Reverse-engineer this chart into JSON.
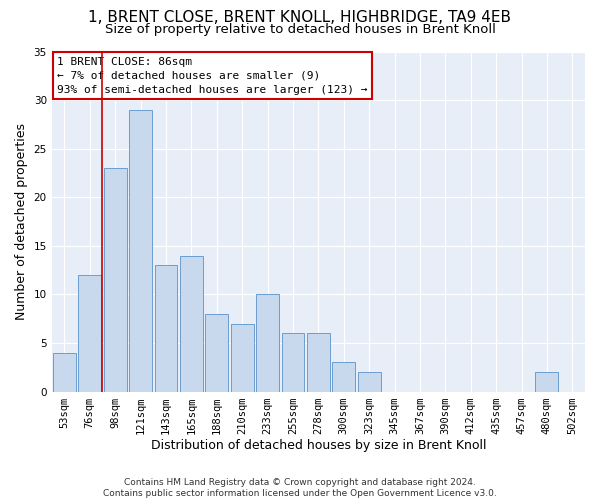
{
  "title": "1, BRENT CLOSE, BRENT KNOLL, HIGHBRIDGE, TA9 4EB",
  "subtitle": "Size of property relative to detached houses in Brent Knoll",
  "xlabel": "Distribution of detached houses by size in Brent Knoll",
  "ylabel": "Number of detached properties",
  "bar_color": "#c9d9ed",
  "bar_edge_color": "#6a9ecf",
  "bins": [
    "53sqm",
    "76sqm",
    "98sqm",
    "121sqm",
    "143sqm",
    "165sqm",
    "188sqm",
    "210sqm",
    "233sqm",
    "255sqm",
    "278sqm",
    "300sqm",
    "323sqm",
    "345sqm",
    "367sqm",
    "390sqm",
    "412sqm",
    "435sqm",
    "457sqm",
    "480sqm",
    "502sqm"
  ],
  "values": [
    4,
    12,
    23,
    29,
    13,
    14,
    8,
    7,
    10,
    6,
    6,
    3,
    2,
    0,
    0,
    0,
    0,
    0,
    0,
    2,
    0
  ],
  "vline_color": "#cc0000",
  "vline_x": 1.5,
  "annotation_text": "1 BRENT CLOSE: 86sqm\n← 7% of detached houses are smaller (9)\n93% of semi-detached houses are larger (123) →",
  "annotation_box_color": "#ffffff",
  "annotation_box_edge_color": "#cc0000",
  "ylim": [
    0,
    35
  ],
  "yticks": [
    0,
    5,
    10,
    15,
    20,
    25,
    30,
    35
  ],
  "footer": "Contains HM Land Registry data © Crown copyright and database right 2024.\nContains public sector information licensed under the Open Government Licence v3.0.",
  "fig_bg_color": "#ffffff",
  "plot_bg_color": "#e8eef7",
  "grid_color": "#ffffff",
  "title_fontsize": 11,
  "subtitle_fontsize": 9.5,
  "tick_fontsize": 7.5,
  "ylabel_fontsize": 9,
  "xlabel_fontsize": 9,
  "annotation_fontsize": 8,
  "footer_fontsize": 6.5
}
